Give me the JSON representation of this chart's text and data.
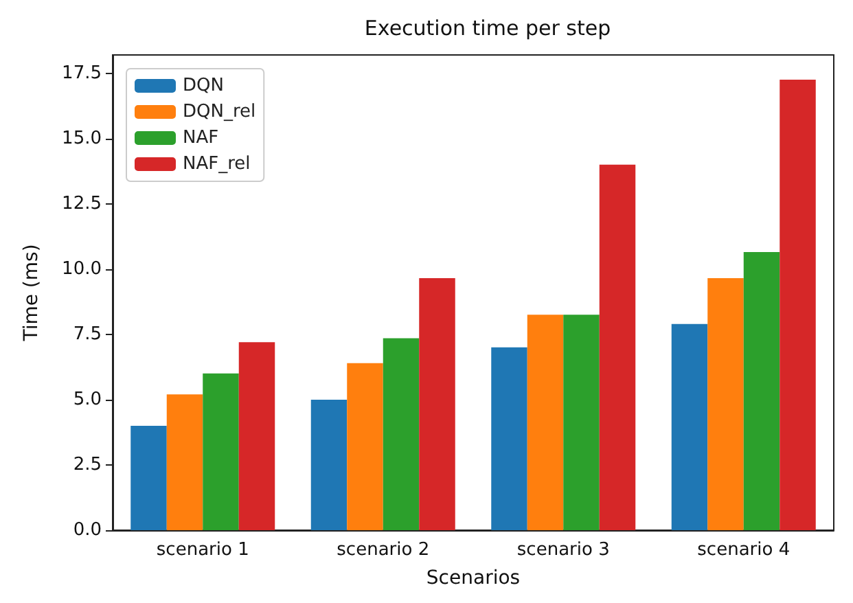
{
  "chart_data": {
    "type": "bar",
    "title": "Execution time per step",
    "xlabel": "Scenarios",
    "ylabel": "Time (ms)",
    "categories": [
      "scenario 1",
      "scenario 2",
      "scenario 3",
      "scenario 4"
    ],
    "series": [
      {
        "name": "DQN",
        "color": "#1f77b4",
        "values": [
          4.0,
          5.0,
          7.0,
          7.9
        ]
      },
      {
        "name": "DQN_rel",
        "color": "#ff7f0e",
        "values": [
          5.2,
          6.4,
          8.25,
          9.65
        ]
      },
      {
        "name": "NAF",
        "color": "#2ca02c",
        "values": [
          6.0,
          7.35,
          8.25,
          10.65
        ]
      },
      {
        "name": "NAF_rel",
        "color": "#d62728",
        "values": [
          7.2,
          9.65,
          14.0,
          17.25
        ]
      }
    ],
    "ylim": [
      0,
      18.2
    ],
    "yticks": [
      {
        "value": 0,
        "label": "0.0"
      },
      2.5,
      {
        "value": 5,
        "label": "5.0"
      },
      7.5,
      {
        "value": 10,
        "label": "10.0"
      },
      12.5,
      {
        "value": 15,
        "label": "15.0"
      },
      17.5
    ],
    "grid": false,
    "legend": "top left"
  }
}
